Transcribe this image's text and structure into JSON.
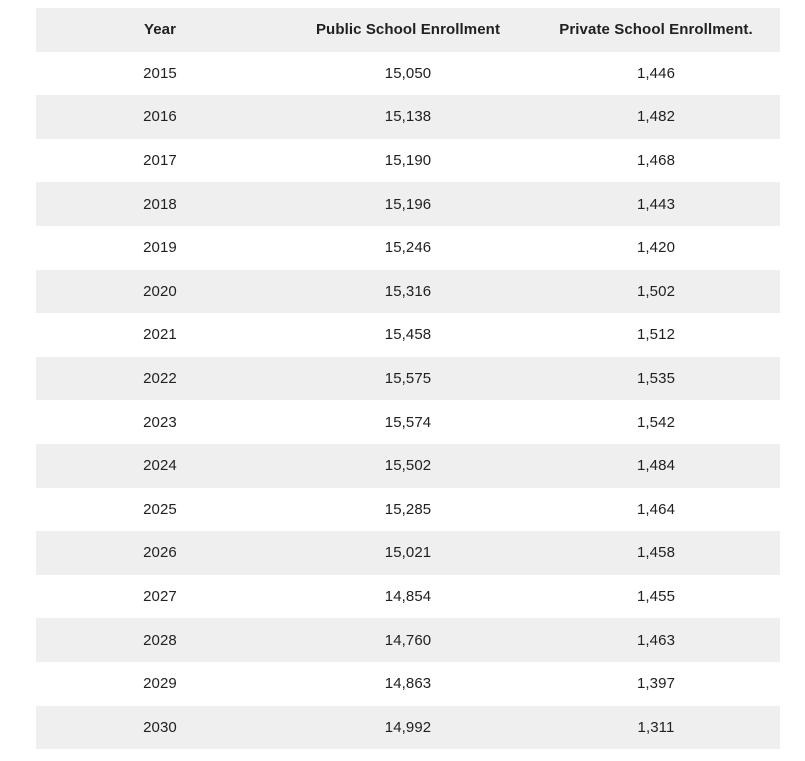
{
  "colors": {
    "stripe": "#efefef",
    "background": "#ffffff",
    "text": "#212121"
  },
  "table": {
    "columns": [
      {
        "label": "Year"
      },
      {
        "label": "Public School Enrollment"
      },
      {
        "label": "Private School Enrollment."
      }
    ],
    "rows": [
      {
        "year": "2015",
        "public": "15,050",
        "private": "1,446"
      },
      {
        "year": "2016",
        "public": "15,138",
        "private": "1,482"
      },
      {
        "year": "2017",
        "public": "15,190",
        "private": "1,468"
      },
      {
        "year": "2018",
        "public": "15,196",
        "private": "1,443"
      },
      {
        "year": "2019",
        "public": "15,246",
        "private": "1,420"
      },
      {
        "year": "2020",
        "public": "15,316",
        "private": "1,502"
      },
      {
        "year": "2021",
        "public": "15,458",
        "private": "1,512"
      },
      {
        "year": "2022",
        "public": "15,575",
        "private": "1,535"
      },
      {
        "year": "2023",
        "public": "15,574",
        "private": "1,542"
      },
      {
        "year": "2024",
        "public": "15,502",
        "private": "1,484"
      },
      {
        "year": "2025",
        "public": "15,285",
        "private": "1,464"
      },
      {
        "year": "2026",
        "public": "15,021",
        "private": "1,458"
      },
      {
        "year": "2027",
        "public": "14,854",
        "private": "1,455"
      },
      {
        "year": "2028",
        "public": "14,760",
        "private": "1,463"
      },
      {
        "year": "2029",
        "public": "14,863",
        "private": "1,397"
      },
      {
        "year": "2030",
        "public": "14,992",
        "private": "1,311"
      }
    ]
  },
  "chart_data": {
    "type": "table",
    "title": "",
    "categories": [
      2015,
      2016,
      2017,
      2018,
      2019,
      2020,
      2021,
      2022,
      2023,
      2024,
      2025,
      2026,
      2027,
      2028,
      2029,
      2030
    ],
    "series": [
      {
        "name": "Public School Enrollment",
        "values": [
          15050,
          15138,
          15190,
          15196,
          15246,
          15316,
          15458,
          15575,
          15574,
          15502,
          15285,
          15021,
          14854,
          14760,
          14863,
          14992
        ]
      },
      {
        "name": "Private School Enrollment.",
        "values": [
          1446,
          1482,
          1468,
          1443,
          1420,
          1502,
          1512,
          1535,
          1542,
          1484,
          1464,
          1458,
          1455,
          1463,
          1397,
          1311
        ]
      }
    ],
    "layout": {
      "striped_rows": true,
      "header_background": "#efefef",
      "stripe_background": "#efefef",
      "alignment": "center"
    }
  }
}
